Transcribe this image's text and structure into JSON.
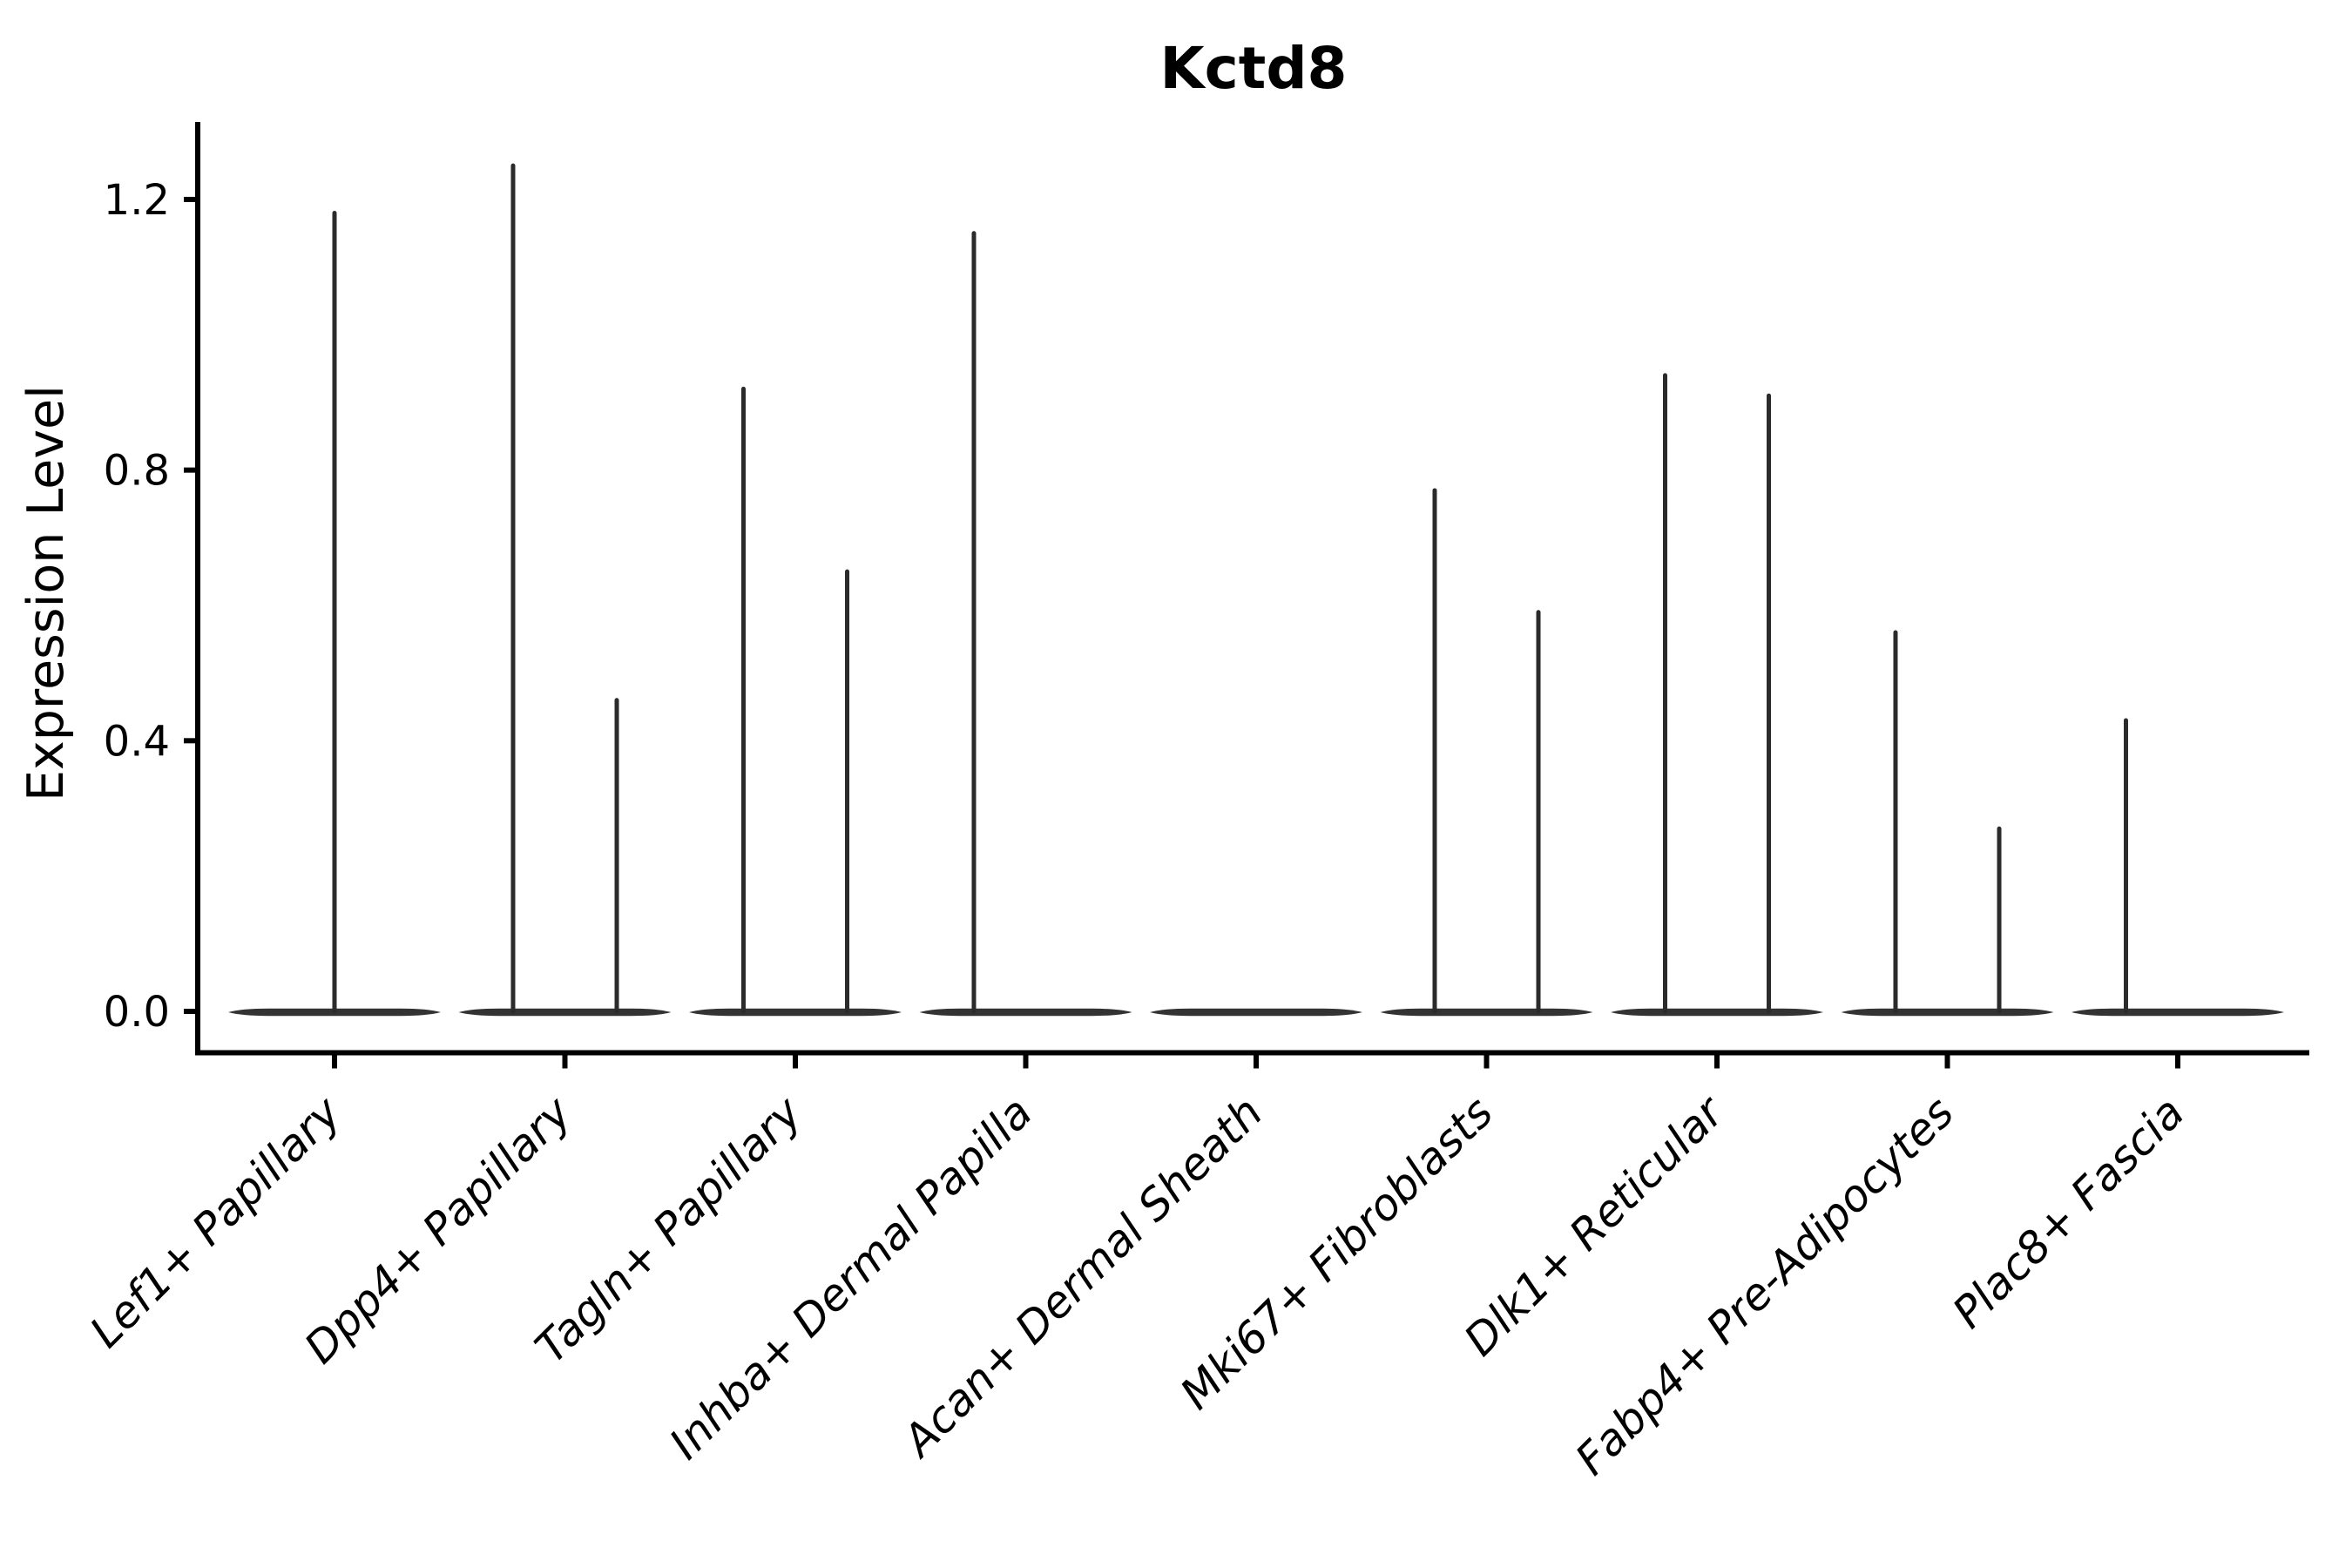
{
  "figure": {
    "background_color": "#ffffff"
  },
  "chart_data": {
    "type": "violin",
    "title": "Kctd8",
    "xlabel": "",
    "ylabel": "Expression Level",
    "grid": false,
    "legend": "none",
    "ylim": [
      -0.06,
      1.32
    ],
    "y_ticks": [
      {
        "value": 0.0,
        "label": "0.0"
      },
      {
        "value": 0.4,
        "label": "0.4"
      },
      {
        "value": 0.8,
        "label": "0.8"
      },
      {
        "value": 1.2,
        "label": "1.2"
      }
    ],
    "categories": [
      "Lef1+ Papillary",
      "Dpp4+ Papillary",
      "Tagln+ Papillary",
      "Inhba+ Dermal Papilla",
      "Acan+ Dermal Sheath",
      "Mki67+ Fibroblasts",
      "Dlk1+ Reticular",
      "Fabp4+ Pre-Adipocytes",
      "Plac8+ Fascia"
    ],
    "description": "Violin plot of Kctd8 expression; each cell type shows a wide flat base at expression 0 with thin vertical spikes marking sparse expressing cells up to the max expression value.",
    "violin_base_value": 0.0,
    "series": [
      {
        "category": "Lef1+ Papillary",
        "spikes": [
          {
            "offset": 0.0,
            "max_expression": 1.18
          }
        ]
      },
      {
        "category": "Dpp4+ Papillary",
        "spikes": [
          {
            "offset": -0.225,
            "max_expression": 1.25
          },
          {
            "offset": 0.225,
            "max_expression": 0.46
          }
        ]
      },
      {
        "category": "Tagln+ Papillary",
        "spikes": [
          {
            "offset": -0.225,
            "max_expression": 0.92
          },
          {
            "offset": 0.225,
            "max_expression": 0.65
          }
        ]
      },
      {
        "category": "Inhba+ Dermal Papilla",
        "spikes": [
          {
            "offset": -0.225,
            "max_expression": 1.15
          }
        ]
      },
      {
        "category": "Acan+ Dermal Sheath",
        "spikes": []
      },
      {
        "category": "Mki67+ Fibroblasts",
        "spikes": [
          {
            "offset": -0.225,
            "max_expression": 0.77
          },
          {
            "offset": 0.225,
            "max_expression": 0.59
          }
        ]
      },
      {
        "category": "Dlk1+ Reticular",
        "spikes": [
          {
            "offset": -0.225,
            "max_expression": 0.94
          },
          {
            "offset": 0.225,
            "max_expression": 0.91
          }
        ]
      },
      {
        "category": "Fabp4+ Pre-Adipocytes",
        "spikes": [
          {
            "offset": -0.225,
            "max_expression": 0.56
          },
          {
            "offset": 0.225,
            "max_expression": 0.27
          }
        ]
      },
      {
        "category": "Plac8+ Fascia",
        "spikes": [
          {
            "offset": -0.225,
            "max_expression": 0.43
          }
        ]
      }
    ],
    "colors": {
      "axis": "#000000",
      "violin_base": "#333333",
      "spike": "#2b2b2b",
      "text": "#000000"
    }
  }
}
